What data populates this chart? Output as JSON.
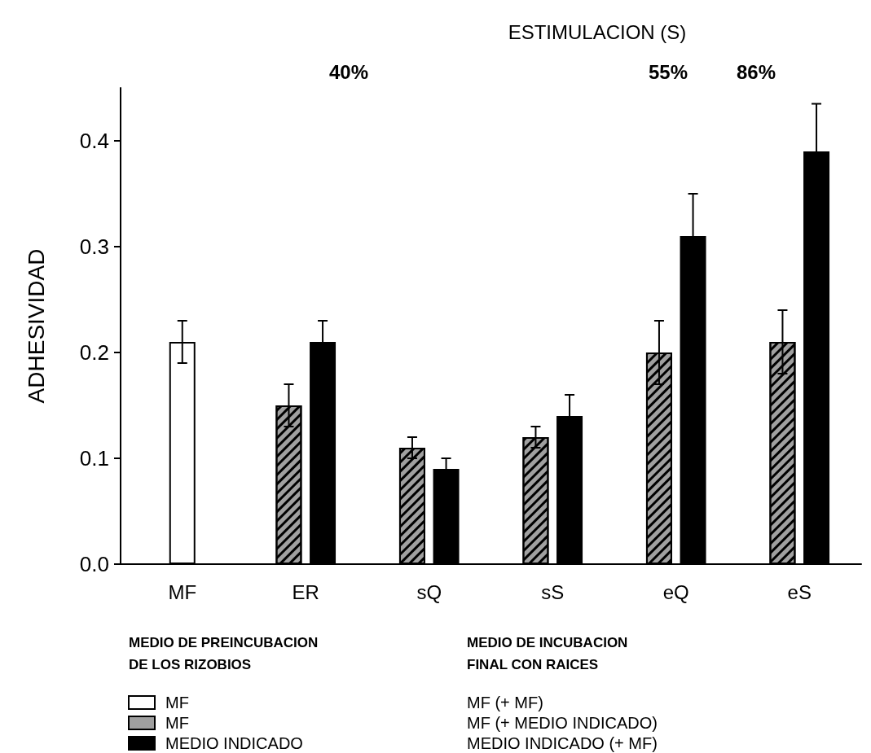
{
  "chart_data": {
    "type": "bar",
    "title": "ESTIMULACION (S)",
    "ylabel": "ADHESIVIDAD",
    "categories": [
      "MF",
      "ER",
      "sQ",
      "sS",
      "eQ",
      "eS"
    ],
    "series": [
      {
        "name": "MF",
        "color": "#ffffff",
        "values": [
          0.21,
          null,
          null,
          null,
          null,
          null
        ],
        "errors": [
          0.02,
          null,
          null,
          null,
          null,
          null
        ]
      },
      {
        "name": "MF",
        "color": "#a0a0a0",
        "values": [
          null,
          0.15,
          0.11,
          0.12,
          0.2,
          0.21
        ],
        "errors": [
          null,
          0.02,
          0.01,
          0.01,
          0.03,
          0.03
        ]
      },
      {
        "name": "MEDIO INDICADO",
        "color": "#000000",
        "values": [
          null,
          0.21,
          0.09,
          0.14,
          0.31,
          0.39
        ],
        "errors": [
          null,
          0.02,
          0.01,
          0.02,
          0.04,
          0.045
        ]
      }
    ],
    "ylim": [
      0,
      0.45
    ],
    "yticks": [
      {
        "value": 0,
        "label": "0.0"
      },
      0.1,
      0.2,
      0.3,
      0.4
    ],
    "grid": false,
    "legend": "bottom",
    "annotations": [
      "40%",
      "55%",
      "86%",
      "MEDIO DE PREINCUBACION\nDE LOS RIZOBIOS",
      "MEDIO DE INCUBACION\nFINAL CON RAICES",
      "MF (+ MF)",
      "MF (+ MEDIO INDICADO)",
      "MEDIO INDICADO (+ MF)"
    ]
  }
}
